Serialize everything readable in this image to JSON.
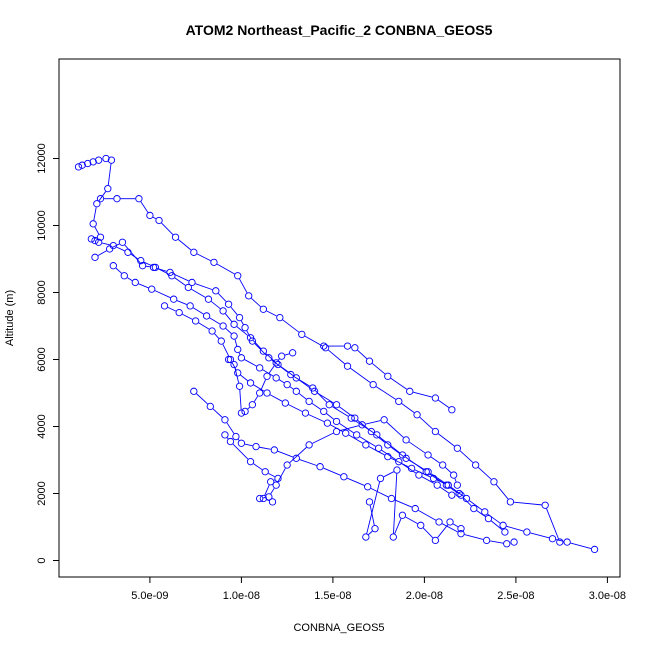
{
  "chart_data": {
    "type": "scatter",
    "title": "ATOM2 Northeast_Pacific_2 CONBNA_GEOS5",
    "xlabel": "CONBNA_GEOS5",
    "ylabel": "Altitude (m)",
    "xlim": [
      1e-09,
      3e-08
    ],
    "ylim": [
      0,
      12000
    ],
    "x_ticks": [
      5e-09,
      1e-08,
      1.5e-08,
      2e-08,
      2.5e-08,
      3e-08
    ],
    "x_tick_labels": [
      "5.0e-09",
      "1.0e-08",
      "1.5e-08",
      "2.0e-08",
      "2.5e-08",
      "3.0e-08"
    ],
    "y_ticks": [
      0,
      2000,
      4000,
      6000,
      8000,
      10000,
      12000
    ],
    "y_tick_labels": [
      "0",
      "2000",
      "4000",
      "6000",
      "8000",
      "10000",
      "12000"
    ],
    "grid": false,
    "marker": "open-circle",
    "line": "connected",
    "color": "#0000ff",
    "series": [
      {
        "x": [
          1.1e-09,
          1.3e-09,
          1.6e-09,
          1.9e-09,
          2.2e-09,
          2.6e-09,
          2.9e-09,
          2.7e-09,
          2.1e-09,
          1.9e-09,
          2.3e-09,
          1.8e-09,
          2e-09,
          2.2e-09,
          3e-09,
          3.8e-09,
          4.5e-09,
          5.3e-09,
          6.2e-09,
          7.1e-09,
          8.2e-09,
          9e-09,
          9.6e-09,
          1.05e-08,
          1.12e-08,
          1.2e-08,
          1.3e-08,
          1.4e-08,
          1.52e-08,
          1.62e-08,
          1.71e-08,
          1.8e-08,
          1.9e-08,
          2.02e-08,
          2.13e-08,
          2.23e-08,
          2.33e-08,
          2.43e-08,
          2.56e-08,
          2.7e-08,
          2.78e-08,
          2.93e-08
        ],
        "y": [
          11750,
          11800,
          11850,
          11900,
          11950,
          12000,
          11950,
          11100,
          10650,
          10050,
          9650,
          9600,
          9550,
          9500,
          9400,
          9200,
          8950,
          8750,
          8500,
          8150,
          7800,
          7450,
          7050,
          6650,
          6250,
          5850,
          5450,
          5050,
          4650,
          4250,
          3850,
          3450,
          3050,
          2650,
          2250,
          1850,
          1450,
          1050,
          850,
          650,
          550,
          330
        ]
      },
      {
        "x": [
          2.3e-09,
          3.2e-09,
          4.4e-09,
          5e-09,
          5.5e-09,
          6.4e-09,
          7.4e-09,
          8.5e-09,
          9.8e-09,
          1.04e-08,
          1.12e-08,
          1.21e-08,
          1.33e-08,
          1.46e-08,
          1.58e-08,
          1.72e-08,
          1.86e-08,
          1.96e-08,
          2.06e-08,
          2.18e-08,
          2.28e-08,
          2.38e-08,
          2.47e-08,
          2.66e-08,
          2.74e-08
        ],
        "y": [
          10800,
          10800,
          10800,
          10300,
          10150,
          9650,
          9200,
          8900,
          8500,
          7900,
          7500,
          7250,
          6750,
          6350,
          5800,
          5250,
          4750,
          4350,
          3850,
          3350,
          2850,
          2350,
          1750,
          1650,
          550
        ]
      },
      {
        "x": [
          2e-09,
          2.8e-09,
          3.5e-09,
          4.6e-09,
          5.2e-09,
          6.1e-09,
          7.3e-09,
          8.6e-09,
          9.3e-09,
          9.9e-09,
          1.02e-08,
          1.06e-08,
          1.15e-08,
          1.27e-08,
          1.39e-08,
          1.48e-08,
          1.6e-08,
          1.74e-08,
          1.88e-08,
          2.01e-08,
          2.12e-08,
          2.2e-08,
          2.27e-08,
          2.35e-08,
          2.44e-08
        ],
        "y": [
          9050,
          9300,
          9500,
          8800,
          8750,
          8600,
          8300,
          8050,
          7650,
          7250,
          6950,
          6550,
          6050,
          5550,
          5150,
          4650,
          4250,
          3750,
          3150,
          2650,
          2250,
          1950,
          1550,
          1250,
          850
        ]
      },
      {
        "x": [
          3e-09,
          3.6e-09,
          4.2e-09,
          5.1e-09,
          6.3e-09,
          7.2e-09,
          8.1e-09,
          9e-09,
          9.6e-09,
          9.8e-09,
          1e-08,
          1.1e-08,
          1.19e-08,
          1.25e-08,
          1.3e-08,
          1.37e-08,
          1.45e-08,
          1.52e-08,
          1.63e-08,
          1.75e-08,
          1.86e-08,
          1.97e-08,
          2.07e-08,
          2.15e-08,
          2.19e-08
        ],
        "y": [
          8800,
          8500,
          8300,
          8100,
          7800,
          7600,
          7300,
          7000,
          6700,
          6300,
          6050,
          5750,
          5450,
          5250,
          5050,
          4750,
          4450,
          4150,
          3750,
          3350,
          2950,
          2550,
          2250,
          1950,
          2000
        ]
      },
      {
        "x": [
          5.8e-09,
          6.6e-09,
          7.5e-09,
          8.4e-09,
          8.9e-09,
          9.4e-09,
          9.8e-09,
          1.05e-08,
          1.14e-08,
          1.24e-08,
          1.35e-08,
          1.47e-08,
          1.57e-08,
          1.68e-08,
          1.8e-08,
          1.93e-08,
          2.05e-08,
          2.13e-08
        ],
        "y": [
          7600,
          7400,
          7150,
          6850,
          6550,
          6000,
          5600,
          5300,
          5000,
          4700,
          4400,
          4100,
          3800,
          3450,
          3100,
          2750,
          2450,
          2250
        ]
      },
      {
        "x": [
          7.4e-09,
          8.3e-09,
          9.1e-09,
          9.7e-09,
          1e-08,
          1.08e-08,
          1.18e-08,
          1.3e-08,
          1.43e-08,
          1.56e-08,
          1.69e-08,
          1.82e-08,
          1.95e-08,
          2.08e-08,
          2.2e-08,
          2.34e-08,
          2.45e-08,
          2.49e-08
        ],
        "y": [
          5050,
          4600,
          4200,
          3700,
          3500,
          3400,
          3300,
          3050,
          2800,
          2500,
          2200,
          1850,
          1550,
          1150,
          800,
          600,
          500,
          550
        ]
      },
      {
        "x": [
          9.1e-09,
          9.4e-09,
          1.05e-08,
          1.13e-08,
          1.2e-08,
          1.16e-08,
          1.12e-08,
          1.17e-08
        ],
        "y": [
          3750,
          3550,
          2950,
          2650,
          2450,
          2350,
          1850,
          1750
        ]
      },
      {
        "x": [
          1.1e-08,
          1.15e-08,
          1.19e-08,
          1.25e-08,
          1.37e-08,
          1.52e-08,
          1.66e-08,
          1.78e-08,
          1.9e-08,
          2.02e-08,
          2.1e-08,
          2.16e-08,
          2.18e-08
        ],
        "y": [
          1850,
          1900,
          2250,
          2850,
          3450,
          3850,
          4050,
          4200,
          3600,
          3150,
          2850,
          2550,
          2250
        ]
      },
      {
        "x": [
          1.45e-08,
          1.58e-08,
          1.62e-08,
          1.7e-08,
          1.8e-08,
          1.92e-08,
          2.06e-08,
          2.15e-08
        ],
        "y": [
          6400,
          6400,
          6350,
          5950,
          5500,
          5050,
          4850,
          4500
        ]
      },
      {
        "x": [
          1.7e-08,
          1.73e-08,
          1.68e-08,
          1.76e-08,
          1.85e-08,
          1.83e-08,
          1.88e-08,
          1.98e-08,
          2.06e-08,
          2.14e-08,
          2.2e-08
        ],
        "y": [
          1750,
          950,
          700,
          2450,
          2700,
          700,
          1350,
          1050,
          600,
          1150,
          950
        ]
      },
      {
        "x": [
          9.3e-09,
          9.6e-09,
          9.9e-09,
          1e-08,
          1.02e-08,
          1.06e-08,
          1.1e-08,
          1.14e-08,
          1.19e-08,
          1.22e-08,
          1.28e-08
        ],
        "y": [
          6000,
          5850,
          5200,
          4400,
          4450,
          4650,
          5000,
          5500,
          5900,
          6100,
          6200
        ]
      }
    ]
  }
}
